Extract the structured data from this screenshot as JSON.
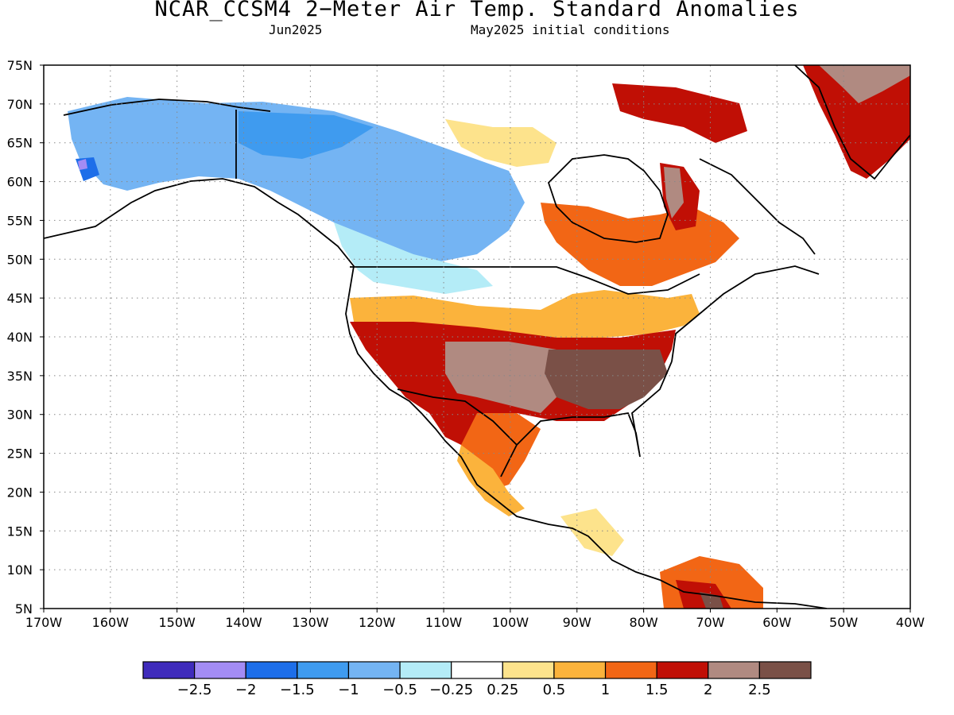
{
  "title": "NCAR_CCSM4 2−Meter Air Temp. Standard Anomalies",
  "subtitle_left": "Jun2025",
  "subtitle_right": "May2025 initial conditions",
  "map": {
    "lon_ticks": [
      "170W",
      "160W",
      "150W",
      "140W",
      "130W",
      "120W",
      "110W",
      "100W",
      "90W",
      "80W",
      "70W",
      "60W",
      "50W",
      "40W"
    ],
    "lat_ticks": [
      "75N",
      "70N",
      "65N",
      "60N",
      "55N",
      "50N",
      "45N",
      "40N",
      "35N",
      "30N",
      "25N",
      "20N",
      "15N",
      "10N",
      "5N"
    ],
    "grid": true,
    "gridline_style": "dotted"
  },
  "colorbar": {
    "colors": [
      "#3f2bbb",
      "#a38cf4",
      "#1d6ee9",
      "#3f9bef",
      "#74b4f3",
      "#b4ecf7",
      "#ffffff",
      "#fde38c",
      "#fbb33c",
      "#f26615",
      "#c00f05",
      "#b08a81",
      "#7a5047"
    ],
    "labels": [
      "−2.5",
      "−2",
      "−1.5",
      "−1",
      "−0.5",
      "−0.25",
      "0.25",
      "0.5",
      "1",
      "1.5",
      "2",
      "2.5"
    ]
  },
  "regions": [
    {
      "name": "alaska-yukon-cold",
      "color": "#74b4f3"
    },
    {
      "name": "canada-cold-core",
      "color": "#3f9bef"
    },
    {
      "name": "western-canada-cool",
      "color": "#b4ecf7"
    },
    {
      "name": "southern-us-heat",
      "color": "#c00f05"
    },
    {
      "name": "southeast-us-extreme",
      "color": "#7a5047"
    },
    {
      "name": "quebec-warm",
      "color": "#f26615"
    },
    {
      "name": "greenland-warm",
      "color": "#c00f05"
    }
  ]
}
